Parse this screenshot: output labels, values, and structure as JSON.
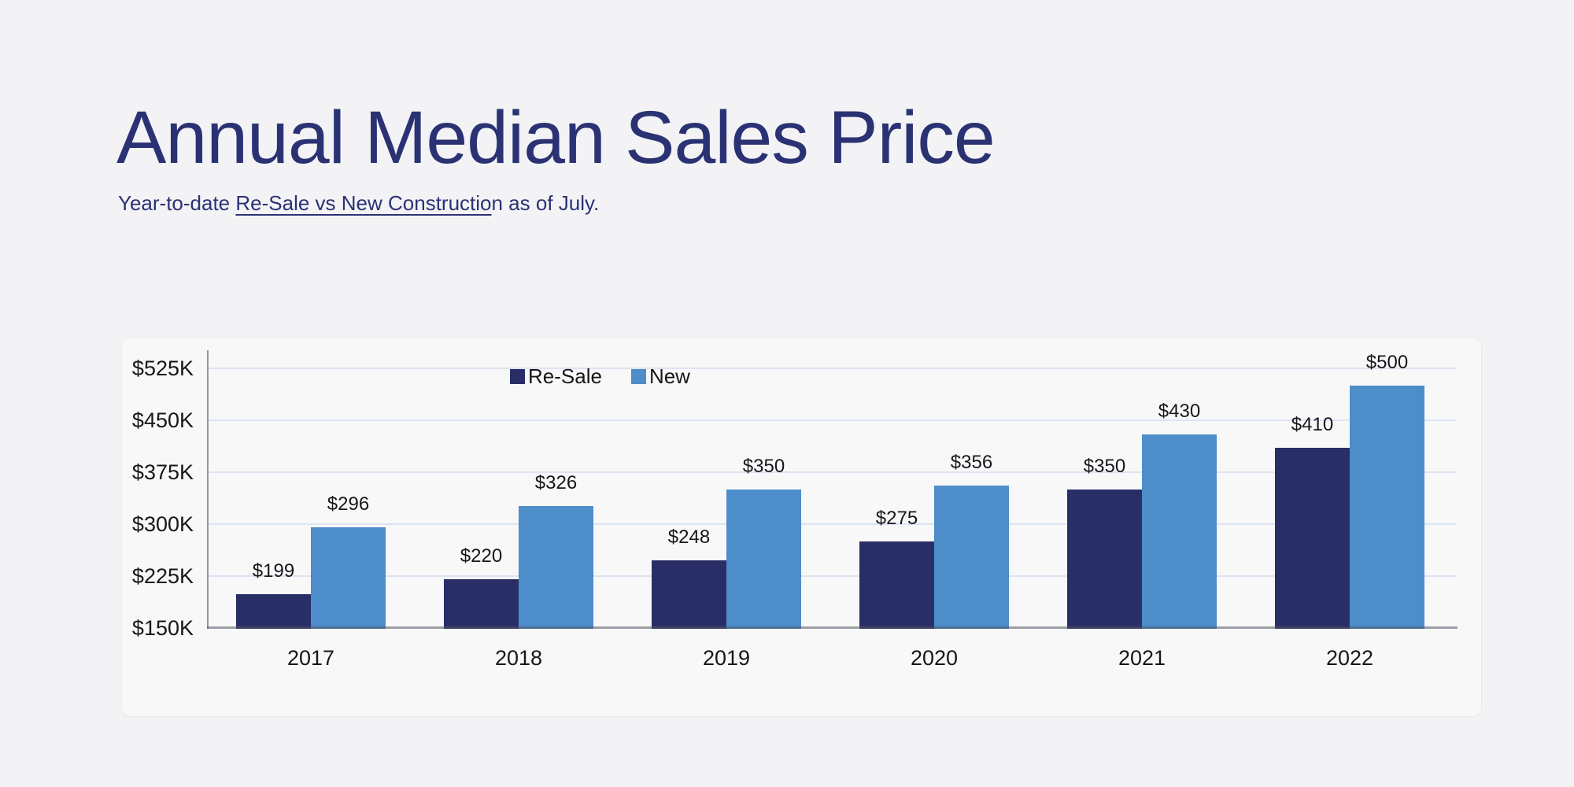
{
  "page": {
    "background": "#f3f3f5"
  },
  "header": {
    "title": "Annual Median Sales Price",
    "subtitle": {
      "prefix": "Year-to-date ",
      "underlined": "Re-Sale vs New Constructio",
      "suffix": "n as of July."
    },
    "title_color": "#2b3274"
  },
  "chart_data": {
    "type": "bar",
    "title": "Annual Median Sales Price",
    "subtitle": "Year-to-date Re-Sale vs New Construction as of July.",
    "categories": [
      "2017",
      "2018",
      "2019",
      "2020",
      "2021",
      "2022"
    ],
    "series": [
      {
        "name": "Re-Sale",
        "color": "#292f66",
        "values": [
          199,
          220,
          248,
          275,
          350,
          410
        ]
      },
      {
        "name": "New",
        "color": "#4d8dca",
        "values": [
          296,
          326,
          350,
          356,
          430,
          500
        ]
      }
    ],
    "value_label_prefix": "$",
    "y_ticks": [
      {
        "label": "$150K",
        "value": 150
      },
      {
        "label": "$225K",
        "value": 225
      },
      {
        "label": "$300K",
        "value": 300
      },
      {
        "label": "$375K",
        "value": 375
      },
      {
        "label": "$450K",
        "value": 450
      },
      {
        "label": "$525K",
        "value": 525
      }
    ],
    "xlabel": "",
    "ylabel": "",
    "ylim": [
      150,
      531
    ],
    "grid": true,
    "legend_position": "top-center",
    "grid_color": "#dde4f1",
    "axis_color": "#95979e",
    "label_color": "#16171a"
  }
}
